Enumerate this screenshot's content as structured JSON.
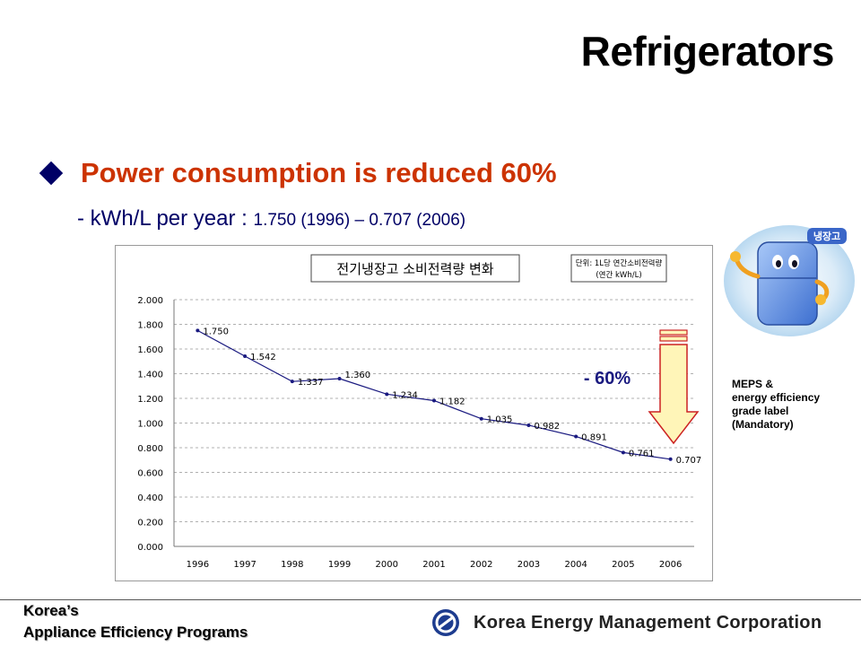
{
  "slide": {
    "title": "Refrigerators",
    "bullet": "Power consumption is reduced 60%",
    "subline_prefix": "- kWh/L per year : ",
    "subline_values": "1.750 (1996) – 0.707 (2006)"
  },
  "chart_data": {
    "type": "line",
    "title": "전기냉장고 소비전력량 변화",
    "unit_note_line1": "단위: 1L당 연간소비전력량",
    "unit_note_line2": "(연간 kWh/L)",
    "categories": [
      "1996",
      "1997",
      "1998",
      "1999",
      "2000",
      "2001",
      "2002",
      "2003",
      "2004",
      "2005",
      "2006"
    ],
    "values": [
      1.75,
      1.542,
      1.337,
      1.36,
      1.234,
      1.182,
      1.035,
      0.982,
      0.891,
      0.761,
      0.707
    ],
    "data_labels": [
      "1.750",
      "1.542",
      "1.337",
      "1.360",
      "1.234",
      "1.182",
      "1.035",
      "0.982",
      "0.891",
      "0.761",
      "0.707"
    ],
    "ylim": [
      0,
      2.0
    ],
    "yticks": [
      "0.000",
      "0.200",
      "0.400",
      "0.600",
      "0.800",
      "1.000",
      "1.200",
      "1.400",
      "1.600",
      "1.800",
      "2.000"
    ],
    "grid": true,
    "annotation": "- 60%",
    "colors": {
      "line": "#1a1a80",
      "grid": "#b0b0b0",
      "arrow_fill": "#fff5b8",
      "arrow_stroke": "#cc2222",
      "annotation": "#1a1a80"
    }
  },
  "side": {
    "badge": "냉장고",
    "label_lines": [
      "MEPS &",
      "energy efficiency",
      "grade label",
      "(Mandatory)"
    ]
  },
  "footer": {
    "left_line1": "Korea’s",
    "left_line2": "Appliance Efficiency Programs",
    "org": "Korea Energy Management Corporation"
  },
  "icons": {
    "bullet": "diamond-bullet-icon",
    "logo": "kemco-logo-icon",
    "mascot": "refrigerator-mascot-icon"
  }
}
